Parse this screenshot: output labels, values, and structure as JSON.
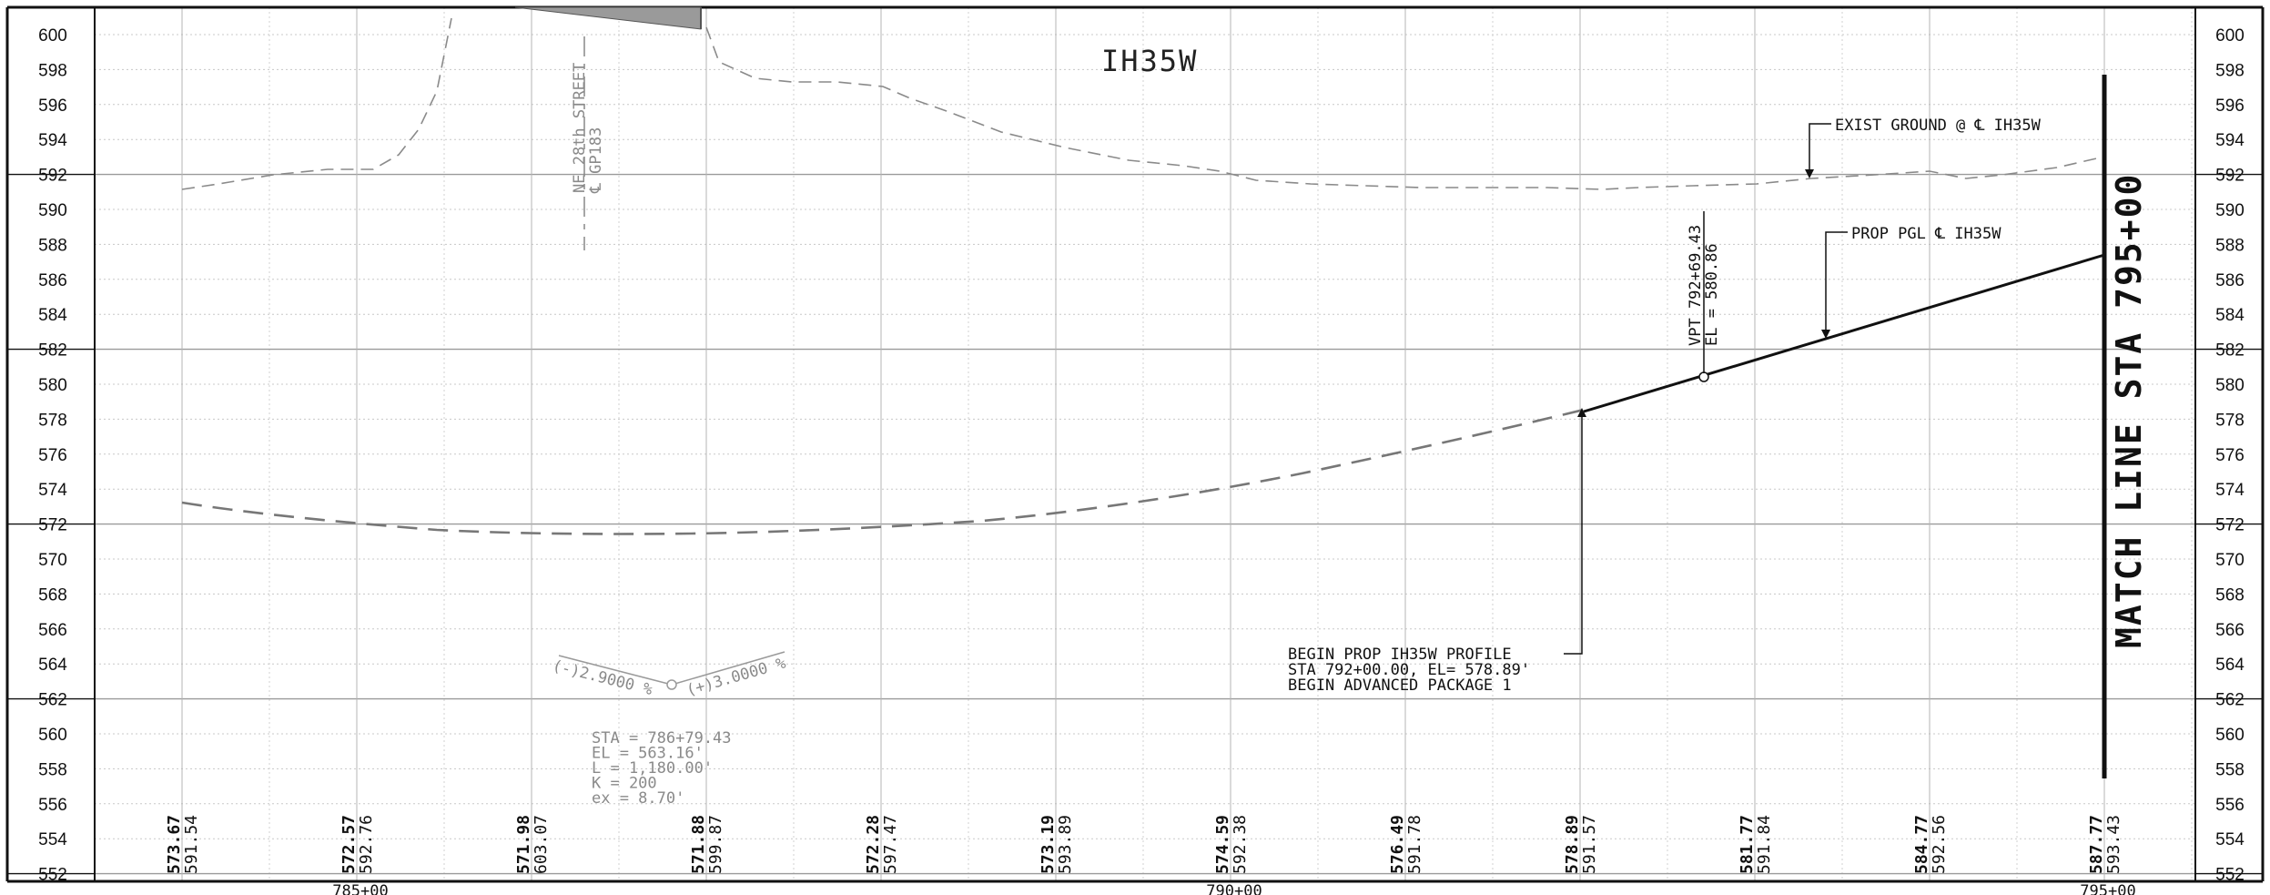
{
  "drawing": {
    "title": "IH35W",
    "match_line": "MATCH LINE STA 795+00",
    "cross_street": [
      "NE 28th STREET",
      "℄ GP183"
    ],
    "elevation_ticks": [
      600,
      598,
      596,
      594,
      592,
      590,
      588,
      586,
      584,
      582,
      580,
      578,
      576,
      574,
      572,
      570,
      568,
      566,
      564,
      562,
      560,
      558,
      556,
      554,
      552
    ],
    "station_labels": [
      "785+00",
      "790+00",
      "795+00"
    ],
    "profile_columns": [
      {
        "proposed": "573.67",
        "existing": "591.54"
      },
      {
        "proposed": "572.57",
        "existing": "592.76"
      },
      {
        "proposed": "571.98",
        "existing": "603.07"
      },
      {
        "proposed": "571.88",
        "existing": "599.87"
      },
      {
        "proposed": "572.28",
        "existing": "597.47"
      },
      {
        "proposed": "573.19",
        "existing": "593.89"
      },
      {
        "proposed": "574.59",
        "existing": "592.38"
      },
      {
        "proposed": "576.49",
        "existing": "591.78"
      },
      {
        "proposed": "578.89",
        "existing": "591.57"
      },
      {
        "proposed": "581.77",
        "existing": "591.84"
      },
      {
        "proposed": "584.77",
        "existing": "592.56"
      },
      {
        "proposed": "587.77",
        "existing": "593.43"
      }
    ],
    "callouts": {
      "exist_ground": "EXIST GROUND @ ℄ IH35W",
      "prop_pgl": "PROP PGL ℄ IH35W",
      "vpt": [
        "VPT 792+69.43",
        "EL = 580.86"
      ],
      "begin_profile": [
        "BEGIN PROP IH35W PROFILE",
        "STA 792+00.00, EL= 578.89'",
        "BEGIN ADVANCED PACKAGE 1"
      ]
    },
    "vertical_curve": {
      "grade_in": "(-)2.9000 %",
      "grade_out": "(+)3.0000 %",
      "data": [
        "STA = 786+79.43",
        "EL = 563.16'",
        "L = 1,180.00'",
        "K = 200",
        "ex = 8.70'"
      ]
    }
  }
}
